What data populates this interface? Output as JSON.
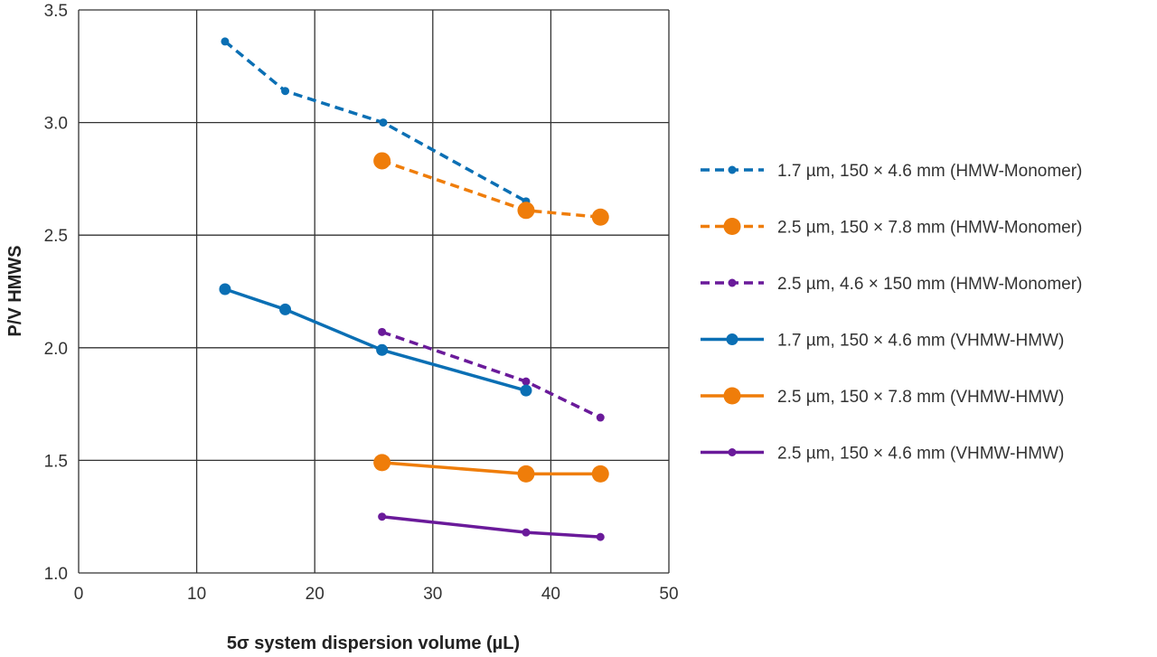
{
  "chart_data": {
    "type": "line",
    "title": "",
    "xlabel": "5σ system dispersion volume (µL)",
    "ylabel": "P/V HMWS",
    "xlim": [
      0,
      50
    ],
    "ylim": [
      1.0,
      3.5
    ],
    "xticks": [
      "0",
      "10",
      "20",
      "30",
      "40",
      "50"
    ],
    "yticks": [
      "1.0",
      "1.5",
      "2.0",
      "2.5",
      "3.0",
      "3.5"
    ],
    "grid": true,
    "legend_position": "right",
    "series": [
      {
        "name": "1.7 µm, 150 × 4.6 mm (HMW-Monomer)",
        "color": "#0a6fb4",
        "dashed": true,
        "marker": "small",
        "x": [
          12.4,
          17.5,
          25.8,
          37.9
        ],
        "y": [
          3.36,
          3.14,
          3.0,
          2.65
        ]
      },
      {
        "name": "2.5 µm, 150 × 7.8 mm (HMW-Monomer)",
        "color": "#ef7d0a",
        "dashed": true,
        "marker": "large",
        "x": [
          25.7,
          37.9,
          44.2
        ],
        "y": [
          2.83,
          2.61,
          2.58
        ]
      },
      {
        "name": "2.5 µm, 4.6 × 150 mm (HMW-Monomer)",
        "color": "#6a1a9a",
        "dashed": true,
        "marker": "small",
        "x": [
          25.7,
          37.9,
          44.2
        ],
        "y": [
          2.07,
          1.85,
          1.69
        ]
      },
      {
        "name": "1.7 µm, 150 × 4.6 mm (VHMW-HMW)",
        "color": "#0a6fb4",
        "dashed": false,
        "marker": "medium",
        "x": [
          12.4,
          17.5,
          25.7,
          37.9
        ],
        "y": [
          2.26,
          2.17,
          1.99,
          1.81
        ]
      },
      {
        "name": "2.5 µm, 150 × 7.8 mm (VHMW-HMW)",
        "color": "#ef7d0a",
        "dashed": false,
        "marker": "large",
        "x": [
          25.7,
          37.9,
          44.2
        ],
        "y": [
          1.49,
          1.44,
          1.44
        ]
      },
      {
        "name": "2.5 µm, 150 × 4.6 mm (VHMW-HMW)",
        "color": "#6a1a9a",
        "dashed": false,
        "marker": "small",
        "x": [
          25.7,
          37.9,
          44.2
        ],
        "y": [
          1.25,
          1.18,
          1.16
        ]
      }
    ]
  }
}
